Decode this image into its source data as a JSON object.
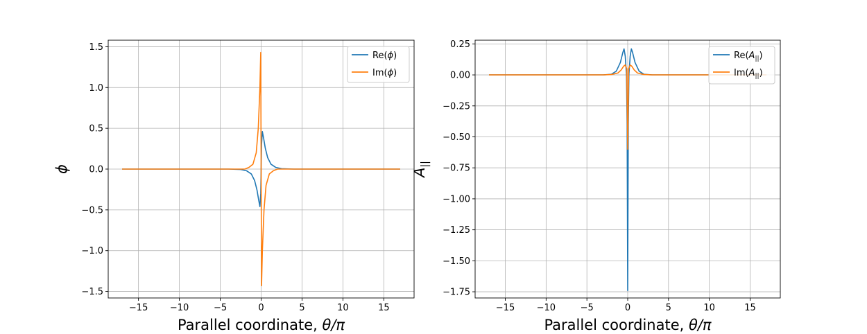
{
  "chart_data": [
    {
      "type": "line",
      "xlabel": "Parallel coordinate, θ/π",
      "ylabel": "ϕ",
      "xlim": [
        -18.7,
        18.7
      ],
      "ylim": [
        -1.58,
        1.58
      ],
      "xticks": [
        -15,
        -10,
        -5,
        0,
        5,
        10,
        15
      ],
      "xtick_labels": [
        "−15",
        "−10",
        "−5",
        "0",
        "5",
        "10",
        "15"
      ],
      "yticks": [
        -1.5,
        -1.0,
        -0.5,
        0.0,
        0.5,
        1.0,
        1.5
      ],
      "ytick_labels": [
        "−1.5",
        "−1.0",
        "−0.5",
        "0.0",
        "0.5",
        "1.0",
        "1.5"
      ],
      "grid": true,
      "legend_position": "top-right",
      "series": [
        {
          "name": "Re(ϕ)",
          "color": "#1f77b4",
          "points": [
            [
              -17,
              0
            ],
            [
              -4,
              0
            ],
            [
              -2.5,
              -0.005
            ],
            [
              -1.8,
              -0.02
            ],
            [
              -1.2,
              -0.06
            ],
            [
              -0.8,
              -0.14
            ],
            [
              -0.5,
              -0.26
            ],
            [
              -0.3,
              -0.38
            ],
            [
              -0.15,
              -0.46
            ],
            [
              -0.05,
              -0.3
            ],
            [
              0,
              0
            ],
            [
              0.05,
              0.3
            ],
            [
              0.15,
              0.46
            ],
            [
              0.3,
              0.38
            ],
            [
              0.5,
              0.26
            ],
            [
              0.8,
              0.14
            ],
            [
              1.2,
              0.06
            ],
            [
              1.8,
              0.02
            ],
            [
              2.5,
              0.005
            ],
            [
              4,
              0
            ],
            [
              17,
              0
            ]
          ]
        },
        {
          "name": "Im(ϕ)",
          "color": "#ff7f0e",
          "points": [
            [
              -17,
              0
            ],
            [
              -3,
              0
            ],
            [
              -2,
              0.0
            ],
            [
              -1.5,
              0.02
            ],
            [
              -1.0,
              0.06
            ],
            [
              -0.6,
              0.2
            ],
            [
              -0.35,
              0.5
            ],
            [
              -0.15,
              1.0
            ],
            [
              -0.05,
              1.43
            ],
            [
              0,
              0
            ],
            [
              0.05,
              -1.43
            ],
            [
              0.15,
              -1.0
            ],
            [
              0.35,
              -0.5
            ],
            [
              0.6,
              -0.2
            ],
            [
              1.0,
              -0.06
            ],
            [
              1.5,
              -0.02
            ],
            [
              2,
              0.0
            ],
            [
              3,
              0
            ],
            [
              17,
              0
            ]
          ]
        }
      ]
    },
    {
      "type": "line",
      "xlabel": "Parallel coordinate, θ/π",
      "ylabel": "A||",
      "xlim": [
        -18.7,
        18.7
      ],
      "ylim": [
        -1.8,
        0.28
      ],
      "xticks": [
        -15,
        -10,
        -5,
        0,
        5,
        10,
        15
      ],
      "xtick_labels": [
        "−15",
        "−10",
        "−5",
        "0",
        "5",
        "10",
        "15"
      ],
      "yticks": [
        0.25,
        0.0,
        -0.25,
        -0.5,
        -0.75,
        -1.0,
        -1.25,
        -1.5,
        -1.75
      ],
      "ytick_labels": [
        "0.25",
        "0.00",
        "−0.25",
        "−0.50",
        "−0.75",
        "−1.00",
        "−1.25",
        "−1.50",
        "−1.75"
      ],
      "grid": true,
      "legend_position": "top-right",
      "series": [
        {
          "name": "Re(A||)",
          "color": "#1f77b4",
          "points": [
            [
              -17,
              0
            ],
            [
              -3,
              0
            ],
            [
              -2,
              0.005
            ],
            [
              -1.4,
              0.03
            ],
            [
              -0.9,
              0.1
            ],
            [
              -0.6,
              0.18
            ],
            [
              -0.45,
              0.21
            ],
            [
              -0.3,
              0.15
            ],
            [
              -0.15,
              0.0
            ],
            [
              -0.07,
              -0.4
            ],
            [
              0,
              -1.74
            ],
            [
              0.07,
              -0.4
            ],
            [
              0.15,
              0.0
            ],
            [
              0.3,
              0.15
            ],
            [
              0.45,
              0.21
            ],
            [
              0.6,
              0.18
            ],
            [
              0.9,
              0.1
            ],
            [
              1.4,
              0.03
            ],
            [
              2,
              0.005
            ],
            [
              3,
              0
            ],
            [
              17,
              0
            ]
          ]
        },
        {
          "name": "Im(A||)",
          "color": "#ff7f0e",
          "points": [
            [
              -17,
              0
            ],
            [
              -3,
              0
            ],
            [
              -2,
              0.003
            ],
            [
              -1.2,
              0.015
            ],
            [
              -0.8,
              0.04
            ],
            [
              -0.5,
              0.07
            ],
            [
              -0.3,
              0.08
            ],
            [
              -0.12,
              0.05
            ],
            [
              -0.05,
              -0.3
            ],
            [
              0,
              -0.6
            ],
            [
              0.05,
              -0.3
            ],
            [
              0.12,
              0.05
            ],
            [
              0.3,
              0.08
            ],
            [
              0.5,
              0.07
            ],
            [
              0.8,
              0.04
            ],
            [
              1.2,
              0.015
            ],
            [
              2,
              0.003
            ],
            [
              3,
              0
            ],
            [
              17,
              0
            ]
          ]
        }
      ]
    }
  ]
}
